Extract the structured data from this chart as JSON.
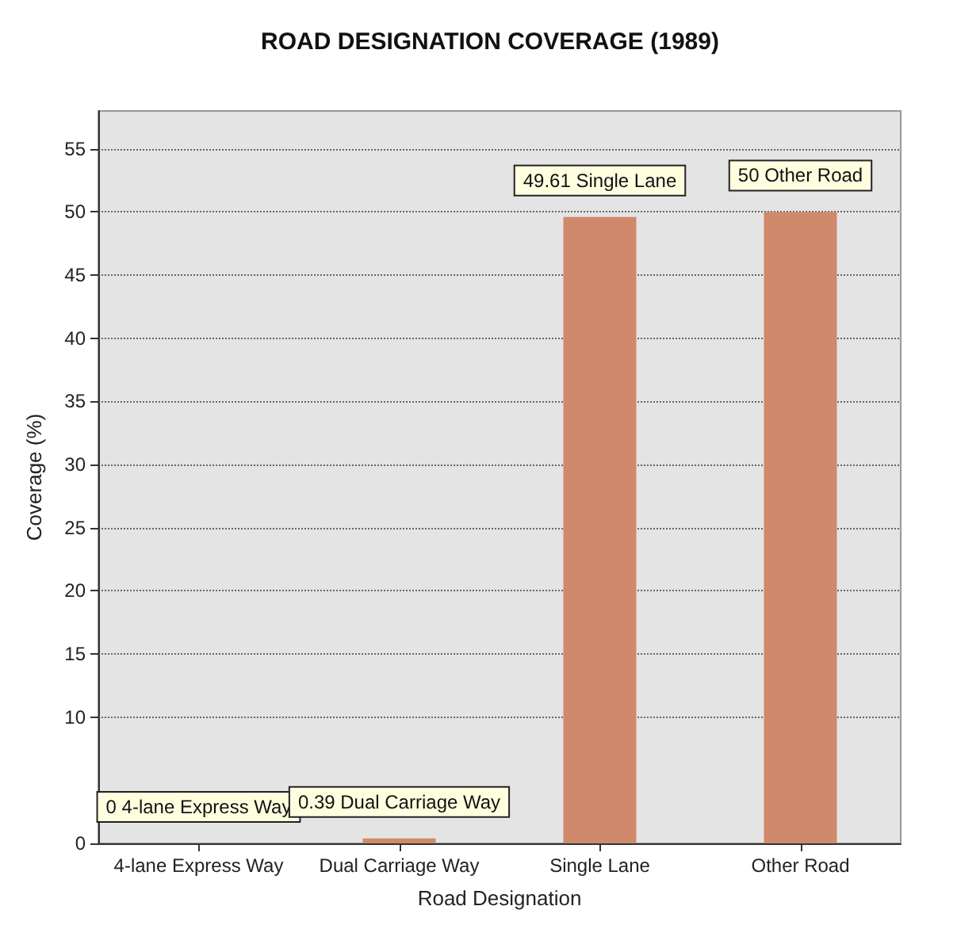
{
  "chart_data": {
    "type": "bar",
    "title": "ROAD DESIGNATION COVERAGE (1989)",
    "xlabel": "Road Designation",
    "ylabel": "Coverage (%)",
    "categories": [
      "4-lane Express Way",
      "Dual Carriage Way",
      "Single Lane",
      "Other Road"
    ],
    "values": [
      0,
      0.39,
      49.61,
      50
    ],
    "value_labels": [
      "0 4-lane Express Way",
      "0.39 Dual Carriage Way",
      "49.61 Single Lane",
      "50 Other Road"
    ],
    "color": "#d0896a",
    "ylim": [
      0,
      58
    ],
    "yticks": [
      0,
      10,
      15,
      20,
      25,
      30,
      35,
      40,
      45,
      50,
      55
    ],
    "grid": "y"
  }
}
